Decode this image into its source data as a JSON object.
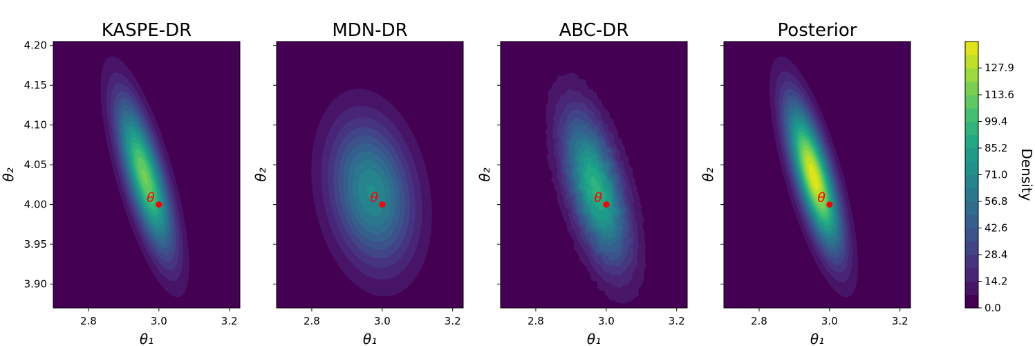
{
  "chart_data": {
    "type": "contourf",
    "panels": [
      {
        "title": "KASPE-DR",
        "xlabel": "θ₁",
        "ylabel": "θ₂",
        "xlim": [
          2.7,
          3.23
        ],
        "ylim": [
          3.87,
          4.205
        ],
        "xticks": [
          "2.8",
          "3.0",
          "3.2"
        ],
        "yticks": [
          "3.90",
          "3.95",
          "4.00",
          "4.05",
          "4.10",
          "4.15",
          "4.20"
        ],
        "show_ytick_labels": true,
        "density": {
          "center": [
            2.96,
            4.035
          ],
          "angle_deg": -57,
          "semi_axes": [
            0.18,
            0.025
          ],
          "peak": 115
        },
        "true_theta": [
          3.0,
          4.0
        ],
        "marker_label": "θ"
      },
      {
        "title": "MDN-DR",
        "xlabel": "θ₁",
        "ylabel": "θ₂",
        "xlim": [
          2.7,
          3.23
        ],
        "ylim": [
          3.87,
          4.205
        ],
        "xticks": [
          "2.8",
          "3.0",
          "3.2"
        ],
        "yticks": [
          "3.90",
          "3.95",
          "4.00",
          "4.05",
          "4.10",
          "4.15",
          "4.20"
        ],
        "show_ytick_labels": false,
        "density": {
          "center": [
            2.97,
            4.015
          ],
          "angle_deg": -68,
          "semi_axes": [
            0.14,
            0.06
          ],
          "peak": 72
        },
        "true_theta": [
          3.0,
          4.0
        ],
        "marker_label": "θ"
      },
      {
        "title": "ABC-DR",
        "xlabel": "θ₁",
        "ylabel": "θ₂",
        "xlim": [
          2.7,
          3.23
        ],
        "ylim": [
          3.87,
          4.205
        ],
        "xticks": [
          "2.8",
          "3.0",
          "3.2"
        ],
        "yticks": [
          "3.90",
          "3.95",
          "4.00",
          "4.05",
          "4.10",
          "4.15",
          "4.20"
        ],
        "show_ytick_labels": false,
        "density": {
          "center": [
            2.97,
            4.02
          ],
          "angle_deg": -58,
          "semi_axes": [
            0.17,
            0.035
          ],
          "peak": 95,
          "noisy": true
        },
        "true_theta": [
          3.0,
          4.0
        ],
        "marker_label": "θ"
      },
      {
        "title": "Posterior",
        "xlabel": "θ₁",
        "ylabel": "θ₂",
        "xlim": [
          2.7,
          3.23
        ],
        "ylim": [
          3.87,
          4.205
        ],
        "xticks": [
          "2.8",
          "3.0",
          "3.2"
        ],
        "yticks": [
          "3.90",
          "3.95",
          "4.00",
          "4.05",
          "4.10",
          "4.15",
          "4.20"
        ],
        "show_ytick_labels": false,
        "density": {
          "center": [
            2.955,
            4.035
          ],
          "angle_deg": -57,
          "semi_axes": [
            0.18,
            0.025
          ],
          "peak": 140
        },
        "true_theta": [
          3.0,
          4.0
        ],
        "marker_label": "θ"
      }
    ],
    "colorbar": {
      "label": "Density",
      "range": [
        0.0,
        142.0
      ],
      "ticks": [
        "0.0",
        "14.2",
        "28.4",
        "42.6",
        "56.8",
        "71.0",
        "85.2",
        "99.4",
        "113.6",
        "127.9"
      ],
      "levels": 20,
      "colormap": [
        "#440154",
        "#481467",
        "#482576",
        "#463480",
        "#414487",
        "#3b528b",
        "#355f8d",
        "#2f6c8e",
        "#2a788e",
        "#25848e",
        "#21918c",
        "#1e9c89",
        "#22a884",
        "#2fb47c",
        "#43bf71",
        "#5ec962",
        "#7ad151",
        "#9bd93c",
        "#bddf26",
        "#dfe318",
        "#fde725"
      ]
    },
    "marker_color": "#ff0000"
  }
}
